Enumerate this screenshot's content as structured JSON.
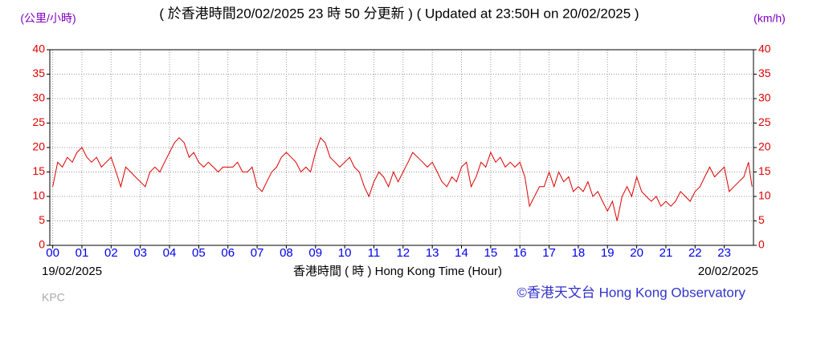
{
  "chart_data": {
    "type": "line",
    "title": "( 於香港時間20/02/2025 23 時 50 分更新 ) ( Updated at 23:50H on 20/02/2025 )",
    "y_label": "(公里/小時)",
    "y2_label": "(km/h)",
    "x_label": "香港時間 ( 時 ) Hong Kong Time (Hour)",
    "start_date": "19/02/2025",
    "end_date": "20/02/2025",
    "credit": "©香港天文台 Hong Kong Observatory",
    "station": "KPC",
    "xlim": [
      -0.1,
      24
    ],
    "ylim": [
      0,
      40
    ],
    "y2lim": [
      0,
      40
    ],
    "grid": true,
    "xticks": [
      {
        "value": 0,
        "label": "00"
      },
      {
        "value": 1,
        "label": "01"
      },
      {
        "value": 2,
        "label": "02"
      },
      {
        "value": 3,
        "label": "03"
      },
      {
        "value": 4,
        "label": "04"
      },
      {
        "value": 5,
        "label": "05"
      },
      {
        "value": 6,
        "label": "06"
      },
      {
        "value": 7,
        "label": "07"
      },
      {
        "value": 8,
        "label": "08"
      },
      {
        "value": 9,
        "label": "09"
      },
      10,
      11,
      12,
      13,
      14,
      15,
      16,
      17,
      18,
      19,
      20,
      21,
      22,
      23
    ],
    "yticks": [
      0,
      5,
      10,
      15,
      20,
      25,
      30,
      35,
      40
    ],
    "y2ticks": [
      0,
      5,
      10,
      15,
      20,
      25,
      30,
      35,
      40
    ],
    "x": [
      0,
      0.17,
      0.33,
      0.5,
      0.67,
      0.83,
      1,
      1.17,
      1.33,
      1.5,
      1.67,
      1.83,
      2,
      2.17,
      2.33,
      2.5,
      2.67,
      2.83,
      3,
      3.17,
      3.33,
      3.5,
      3.67,
      3.83,
      4,
      4.17,
      4.33,
      4.5,
      4.67,
      4.83,
      5,
      5.17,
      5.33,
      5.5,
      5.67,
      5.83,
      6,
      6.17,
      6.33,
      6.5,
      6.67,
      6.83,
      7,
      7.17,
      7.33,
      7.5,
      7.67,
      7.83,
      8,
      8.17,
      8.33,
      8.5,
      8.67,
      8.83,
      9,
      9.17,
      9.33,
      9.5,
      9.67,
      9.83,
      10,
      10.17,
      10.33,
      10.5,
      10.67,
      10.83,
      11,
      11.17,
      11.33,
      11.5,
      11.67,
      11.83,
      12,
      12.17,
      12.33,
      12.5,
      12.67,
      12.83,
      13,
      13.17,
      13.33,
      13.5,
      13.67,
      13.83,
      14,
      14.17,
      14.33,
      14.5,
      14.67,
      14.83,
      15,
      15.17,
      15.33,
      15.5,
      15.67,
      15.83,
      16,
      16.17,
      16.33,
      16.5,
      16.67,
      16.83,
      17,
      17.17,
      17.33,
      17.5,
      17.67,
      17.83,
      18,
      18.17,
      18.33,
      18.5,
      18.67,
      18.83,
      19,
      19.17,
      19.33,
      19.5,
      19.67,
      19.83,
      20,
      20.17,
      20.33,
      20.5,
      20.67,
      20.83,
      21,
      21.17,
      21.33,
      21.5,
      21.67,
      21.83,
      22,
      22.17,
      22.33,
      22.5,
      22.67,
      22.83,
      23,
      23.17,
      23.33,
      23.5,
      23.67,
      23.83,
      23.95
    ],
    "series": [
      {
        "name": "KPC",
        "color": "#dd0000",
        "values": [
          12,
          17,
          16,
          18,
          17,
          19,
          20,
          18,
          17,
          18,
          16,
          17,
          18,
          15,
          12,
          16,
          15,
          14,
          13,
          12,
          15,
          16,
          15,
          17,
          19,
          21,
          22,
          21,
          18,
          19,
          17,
          16,
          17,
          16,
          15,
          16,
          16,
          16,
          17,
          15,
          15,
          16,
          12,
          11,
          13,
          15,
          16,
          18,
          19,
          18,
          17,
          15,
          16,
          15,
          19,
          22,
          21,
          18,
          17,
          16,
          17,
          18,
          16,
          15,
          12,
          10,
          13,
          15,
          14,
          12,
          15,
          13,
          15,
          17,
          19,
          18,
          17,
          16,
          17,
          15,
          13,
          12,
          14,
          13,
          16,
          17,
          12,
          14,
          17,
          16,
          19,
          17,
          18,
          16,
          17,
          16,
          17,
          14,
          8,
          10,
          12,
          12,
          15,
          12,
          15,
          13,
          14,
          11,
          12,
          11,
          13,
          10,
          11,
          9,
          7,
          9,
          5,
          10,
          12,
          10,
          14,
          11,
          10,
          9,
          10,
          8,
          9,
          8,
          9,
          11,
          10,
          9,
          11,
          12,
          14,
          16,
          14,
          15,
          16,
          11,
          12,
          13,
          14,
          17,
          12
        ]
      }
    ]
  }
}
